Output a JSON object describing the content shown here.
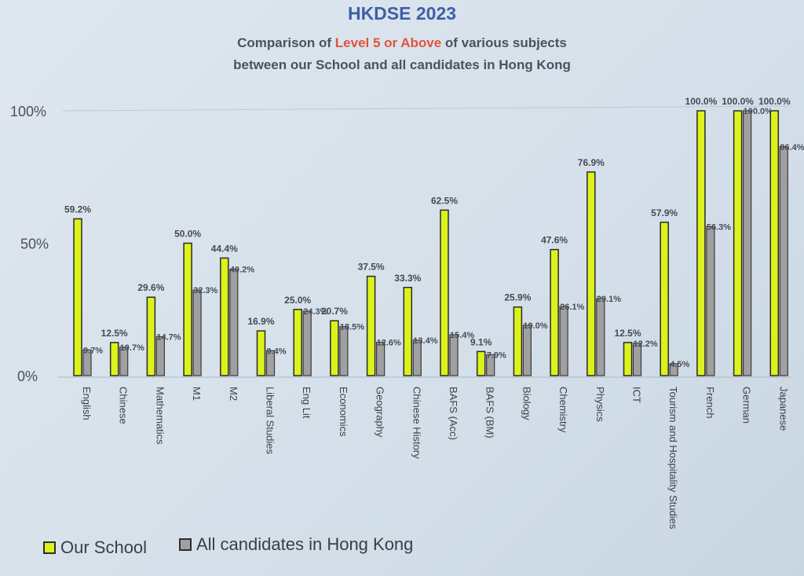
{
  "header": {
    "title": "HKDSE 2023",
    "subtitle_line1_pre": "Comparison of ",
    "subtitle_line1_highlight": "Level 5 or Above",
    "subtitle_line1_post": " of various subjects",
    "subtitle_line2": "between our School and all candidates in Hong Kong"
  },
  "colors": {
    "our_school": "#dcf21c",
    "hong_kong": "#a0a0a0",
    "highlight": "#e0533e",
    "title": "#3f5fa8"
  },
  "legend": {
    "our_school": "Our School",
    "hong_kong": "All candidates in Hong Kong"
  },
  "chart_data": {
    "type": "bar",
    "title": "HKDSE 2023",
    "ylim": [
      0,
      100
    ],
    "yticks": [
      "0%",
      "50%",
      "100%"
    ],
    "grid": false,
    "legend_position": "bottom-left",
    "categories": [
      "English",
      "Chinese",
      "Mathematics",
      "M1",
      "M2",
      "Liberal Studies",
      "Eng Lit",
      "Economics",
      "Geography",
      "Chinese History",
      "BAFS (Acc)",
      "BAFS (BM)",
      "Biology",
      "Chemistry",
      "Physics",
      "ICT",
      "Tourism and Hospitality Studies",
      "French",
      "German",
      "Japanese"
    ],
    "series": [
      {
        "name": "Our School",
        "values": [
          59.2,
          12.5,
          29.6,
          50.0,
          44.4,
          16.9,
          25.0,
          20.7,
          37.5,
          33.3,
          62.5,
          9.1,
          25.9,
          47.6,
          76.9,
          12.5,
          57.9,
          100.0,
          100.0,
          100.0
        ],
        "labels": [
          "59.2%",
          "12.5%",
          "29.6%",
          "50.0%",
          "44.4%",
          "16.9%",
          "25.0%",
          "20.7%",
          "37.5%",
          "33.3%",
          "62.5%",
          "9.1%",
          "25.9%",
          "47.6%",
          "76.9%",
          "12.5%",
          "57.9%",
          "100.0%",
          "100.0%",
          "100.0%"
        ]
      },
      {
        "name": "All candidates in Hong Kong",
        "values": [
          9.7,
          10.7,
          14.7,
          32.3,
          40.2,
          9.4,
          24.3,
          18.5,
          12.6,
          13.4,
          15.4,
          7.9,
          19.0,
          26.1,
          29.1,
          12.2,
          4.5,
          56.3,
          100.0,
          86.4
        ],
        "labels": [
          "9.7%",
          "10.7%",
          "14.7%",
          "32.3%",
          "40.2%",
          "9.4%",
          "24.3%",
          "18.5%",
          "12.6%",
          "13.4%",
          "15.4%",
          "7.9%",
          "19.0%",
          "26.1%",
          "29.1%",
          "12.2%",
          "4.5%",
          "56.3%",
          "100.0%",
          "86.4%"
        ]
      }
    ]
  }
}
